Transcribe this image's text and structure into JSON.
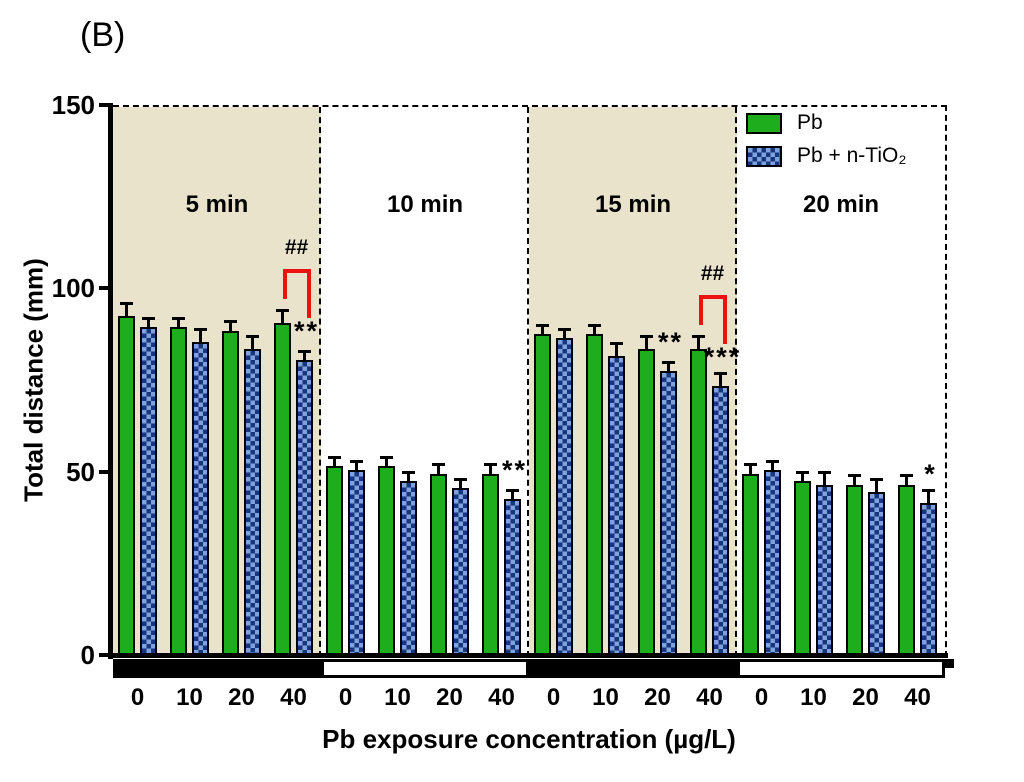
{
  "figure_label": "(B)",
  "colors": {
    "pb_green": "#1dad1d",
    "tio2_light_blue": "#7da2dd",
    "tio2_dark_blue": "#16377d",
    "panel_shade_beige": "#e9e3cc",
    "bracket_red": "#ee1111"
  },
  "legend": {
    "items": [
      "Pb",
      "Pb + n-TiO₂"
    ]
  },
  "chart_data": {
    "type": "bar",
    "title": "",
    "ylabel": "Total distance (mm)",
    "xlabel": "Pb exposure concentration (µg/L)",
    "ylim": [
      0,
      150
    ],
    "yticks": [
      0,
      50,
      100,
      150
    ],
    "categories": [
      "0",
      "10",
      "20",
      "40"
    ],
    "series_names": [
      "Pb",
      "Pb + n-TiO₂"
    ],
    "grid": false,
    "legend_position": "top-right",
    "panels": [
      {
        "label": "5 min",
        "shaded": true,
        "strip": "dark",
        "pb": {
          "values": [
            93,
            90,
            89,
            91
          ],
          "errors": [
            3,
            2,
            2,
            3
          ]
        },
        "tio2": {
          "values": [
            90,
            86,
            84,
            81
          ],
          "errors": [
            2,
            3,
            3,
            2
          ]
        },
        "sig_stars": [
          {
            "group": 3,
            "text": "**"
          }
        ],
        "sig_bracket": {
          "group": 3,
          "text": "##"
        }
      },
      {
        "label": "10 min",
        "shaded": false,
        "strip": "light",
        "pb": {
          "values": [
            52,
            52,
            50,
            50
          ],
          "errors": [
            2,
            2,
            2,
            2
          ]
        },
        "tio2": {
          "values": [
            51,
            48,
            46,
            43
          ],
          "errors": [
            2,
            2,
            2,
            2
          ]
        },
        "sig_stars": [
          {
            "group": 3,
            "text": "**"
          }
        ]
      },
      {
        "label": "15 min",
        "shaded": true,
        "strip": "dark",
        "pb": {
          "values": [
            88,
            88,
            84,
            84
          ],
          "errors": [
            2,
            2,
            3,
            3
          ]
        },
        "tio2": {
          "values": [
            87,
            82,
            78,
            74
          ],
          "errors": [
            2,
            3,
            2,
            3
          ]
        },
        "sig_stars": [
          {
            "group": 2,
            "text": "**"
          },
          {
            "group": 3,
            "text": "***"
          }
        ],
        "sig_bracket": {
          "group": 3,
          "text": "##"
        }
      },
      {
        "label": "20 min",
        "shaded": false,
        "strip": "light",
        "pb": {
          "values": [
            50,
            48,
            47,
            47
          ],
          "errors": [
            2,
            2,
            2,
            2
          ]
        },
        "tio2": {
          "values": [
            51,
            47,
            45,
            42
          ],
          "errors": [
            2,
            3,
            3,
            3
          ]
        },
        "sig_stars": [
          {
            "group": 3,
            "text": "*"
          }
        ]
      }
    ]
  }
}
